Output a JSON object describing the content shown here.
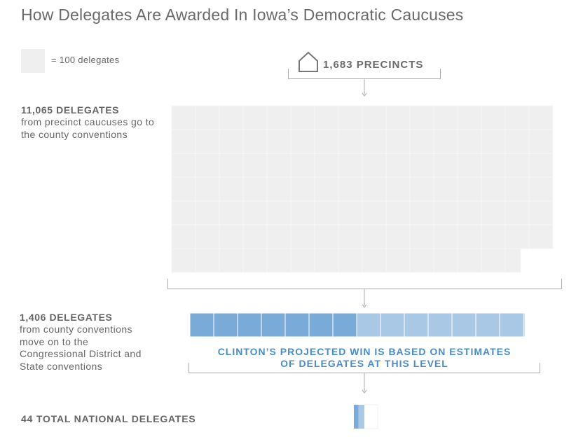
{
  "title": "How Delegates Are Awarded In Iowa’s Democratic Caucuses",
  "legend": {
    "label": "= 100 delegates"
  },
  "precincts": {
    "label": "1,683 PRECINCTS",
    "icon": "house-icon"
  },
  "levels": [
    {
      "head": "11,065 DELEGATES",
      "desc": "from precinct caucuses go to the county conventions",
      "delegates": 11065
    },
    {
      "head": "1,406 DELEGATES",
      "desc": "from county conventions move on to the Congressional District and State conventions",
      "delegates": 1406,
      "clinton_share_units": 7
    },
    {
      "head": "44 TOTAL NATIONAL DELEGATES",
      "delegates": 44
    }
  ],
  "note": {
    "line1": "CLINTON’S PROJECTED WIN IS BASED ON ESTIMATES",
    "line2": "OF DELEGATES AT THIS LEVEL"
  },
  "colors": {
    "unit": "#efefef",
    "clinton": "#7aaad8",
    "other": "#a8c8e6",
    "note": "#4a8cc8",
    "text": "#666666"
  }
}
